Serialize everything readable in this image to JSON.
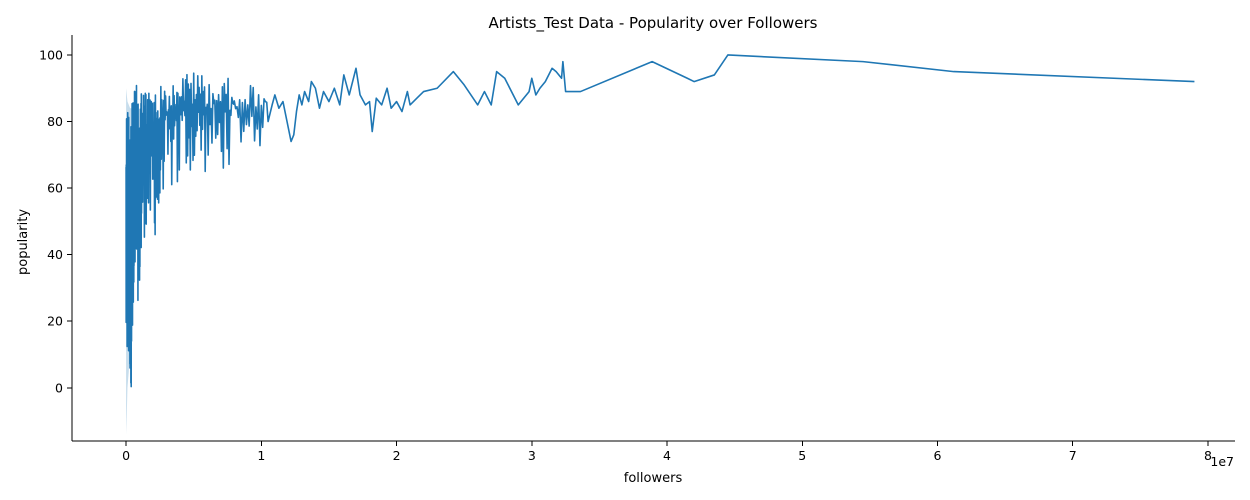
{
  "chart_data": {
    "type": "line",
    "title": "Artists_Test Data - Popularity over Followers",
    "xlabel": "followers",
    "ylabel": "popularity",
    "x_offset_label": "1e7",
    "xlim": [
      -4000000,
      82000000
    ],
    "ylim": [
      -16,
      106
    ],
    "x_ticks": [
      {
        "value": 0,
        "label": "0"
      },
      {
        "value": 10000000,
        "label": "1"
      },
      {
        "value": 20000000,
        "label": "2"
      },
      {
        "value": 30000000,
        "label": "3"
      },
      {
        "value": 40000000,
        "label": "4"
      },
      {
        "value": 50000000,
        "label": "5"
      },
      {
        "value": 60000000,
        "label": "6"
      },
      {
        "value": 70000000,
        "label": "7"
      },
      {
        "value": 80000000,
        "label": "8"
      }
    ],
    "y_ticks": [
      {
        "value": 0,
        "label": "0"
      },
      {
        "value": 20,
        "label": "20"
      },
      {
        "value": 40,
        "label": "40"
      },
      {
        "value": 60,
        "label": "60"
      },
      {
        "value": 80,
        "label": "80"
      },
      {
        "value": 100,
        "label": "100"
      }
    ],
    "grid": false,
    "legend": "none",
    "colors": {
      "line": "#1f77b4",
      "band": "#1f77b4"
    },
    "band": {
      "x": [
        0,
        50000,
        100000,
        200000,
        300000,
        500000
      ],
      "lower": [
        -14,
        -8,
        0,
        5,
        20,
        40
      ],
      "upper": [
        90,
        88,
        86,
        85,
        84,
        84
      ]
    },
    "series": [
      {
        "name": "popularity",
        "dense_segments": [
          {
            "x_start": 0,
            "x_end": 600000,
            "step": 6000,
            "low": 0,
            "high": 86
          },
          {
            "x_start": 600000,
            "x_end": 1200000,
            "step": 12000,
            "low": 26,
            "high": 91
          },
          {
            "x_start": 1200000,
            "x_end": 2500000,
            "step": 22000,
            "low": 45,
            "high": 90
          },
          {
            "x_start": 2500000,
            "x_end": 4000000,
            "step": 35000,
            "low": 59,
            "high": 91
          },
          {
            "x_start": 4000000,
            "x_end": 6000000,
            "step": 50000,
            "low": 64,
            "high": 95
          },
          {
            "x_start": 6000000,
            "x_end": 8000000,
            "step": 70000,
            "low": 65,
            "high": 93
          },
          {
            "x_start": 8000000,
            "x_end": 10500000,
            "step": 100000,
            "low": 72,
            "high": 91
          }
        ],
        "x": [
          10500000,
          10800000,
          11000000,
          11300000,
          11600000,
          11900000,
          12200000,
          12400000,
          12600000,
          12800000,
          13000000,
          13200000,
          13500000,
          13700000,
          14000000,
          14300000,
          14600000,
          15000000,
          15400000,
          15800000,
          16100000,
          16500000,
          17000000,
          17300000,
          17700000,
          18000000,
          18200000,
          18500000,
          18900000,
          19300000,
          19600000,
          20000000,
          20400000,
          20800000,
          21000000,
          21500000,
          22000000,
          23000000,
          24200000,
          25000000,
          26000000,
          26500000,
          27000000,
          27400000,
          28000000,
          29000000,
          29800000,
          30000000,
          30300000,
          30600000,
          31000000,
          31500000,
          31800000,
          32200000,
          32300000,
          32500000,
          33600000,
          38900000,
          41500000,
          42000000,
          43500000,
          44500000,
          54500000,
          61200000,
          79000000
        ],
        "y": [
          80,
          85,
          88,
          84,
          86,
          80,
          74,
          76,
          83,
          88,
          85,
          89,
          86,
          92,
          90,
          84,
          89,
          86,
          90,
          85,
          94,
          88,
          96,
          88,
          85,
          86,
          77,
          87,
          85,
          90,
          84,
          86,
          83,
          89,
          85,
          87,
          89,
          90,
          95,
          91,
          85,
          89,
          85,
          95,
          93,
          85,
          89,
          93,
          88,
          90,
          92,
          96,
          95,
          93,
          98,
          89,
          89,
          98,
          93,
          92,
          94,
          100,
          98,
          95,
          92
        ]
      }
    ]
  }
}
